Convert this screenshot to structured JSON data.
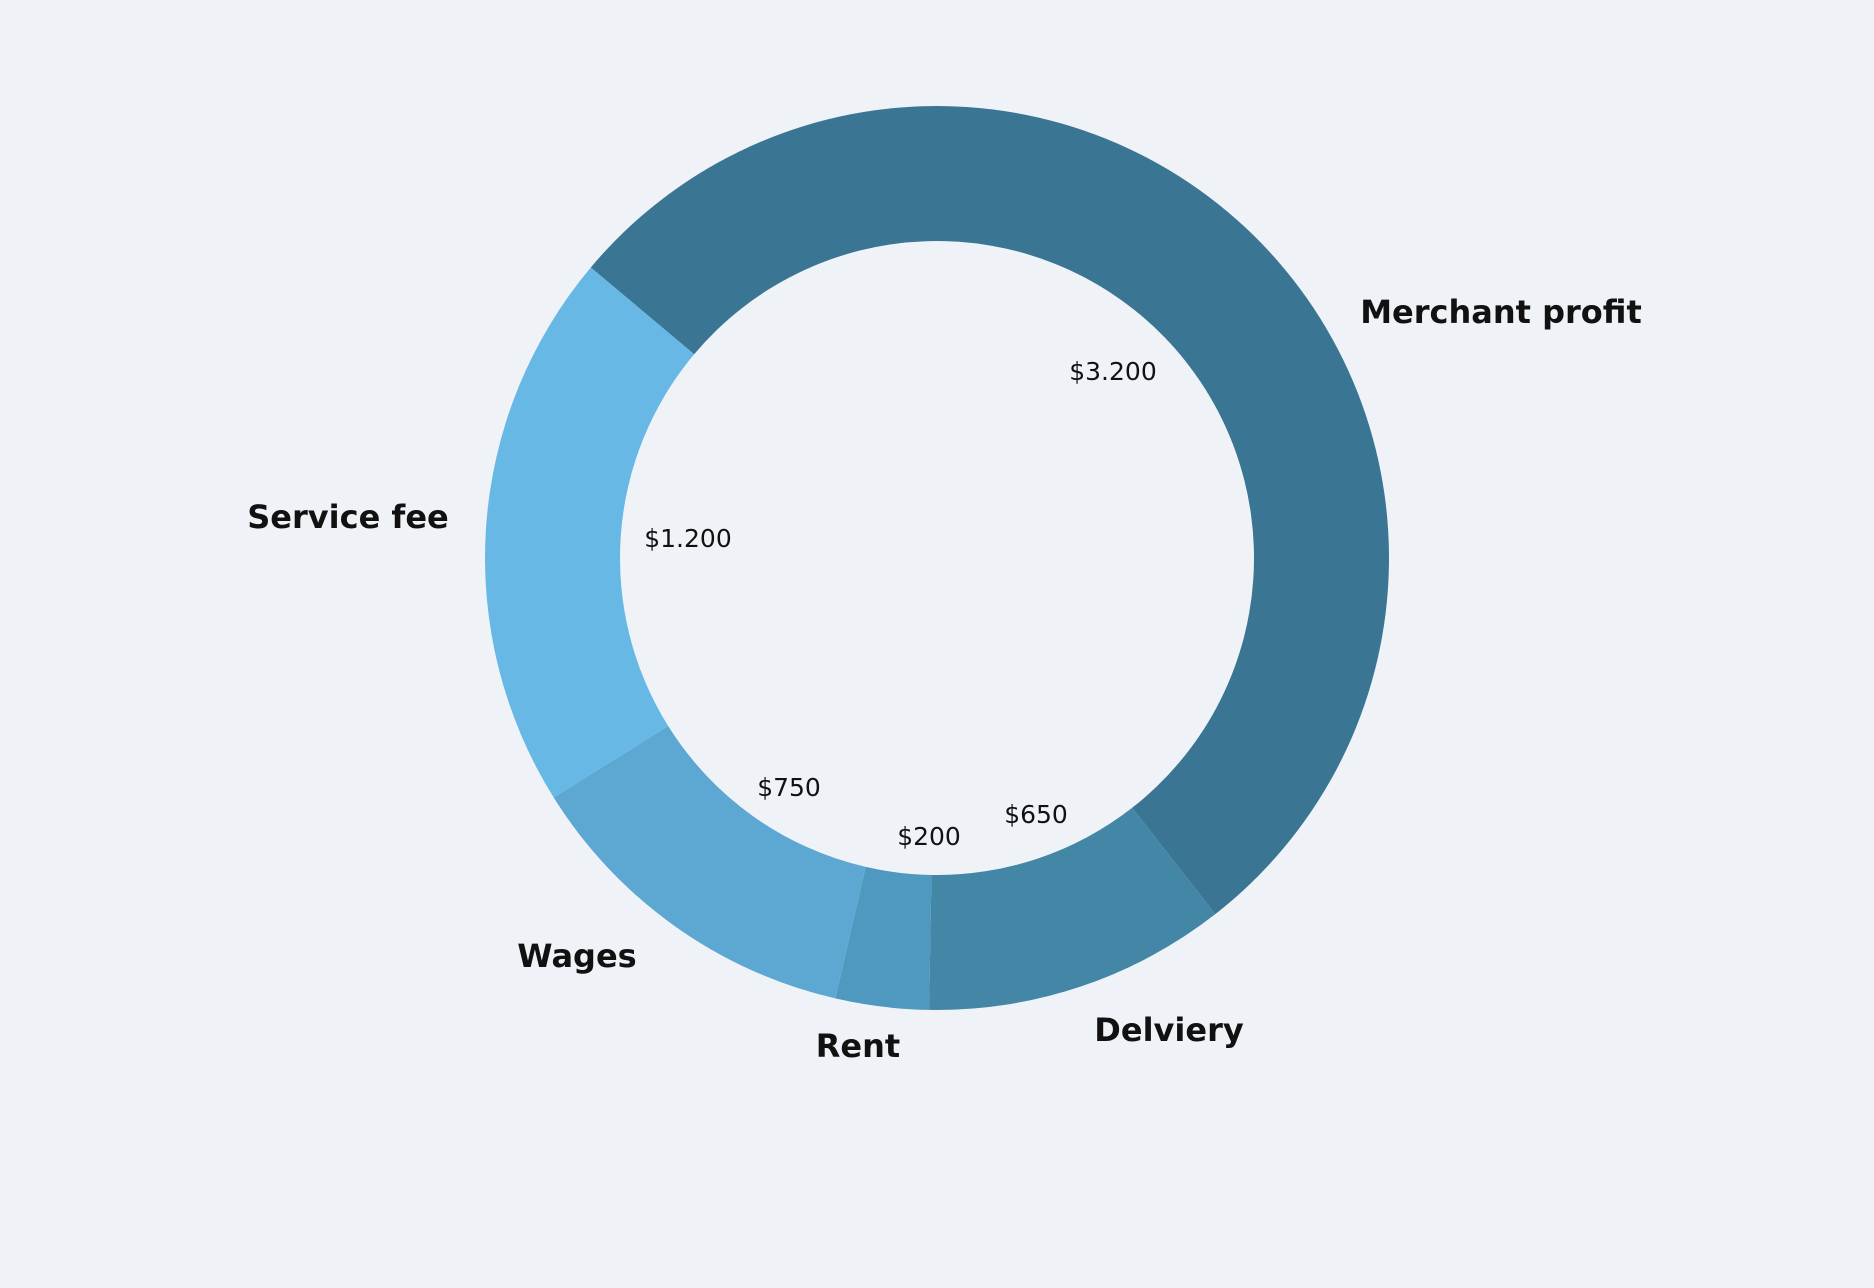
{
  "chart_data": {
    "type": "donut",
    "categories": [
      "Merchant profit",
      "Delviery",
      "Rent",
      "Wages",
      "Service fee"
    ],
    "values": [
      3200,
      650,
      200,
      750,
      1200
    ],
    "value_labels": [
      "$3.200",
      "$650",
      "$200",
      "$750",
      "$1.200"
    ],
    "colors": [
      "#3a7694",
      "#4486a6",
      "#4f98bf",
      "#5ca8d3",
      "#68b8e6"
    ]
  }
}
